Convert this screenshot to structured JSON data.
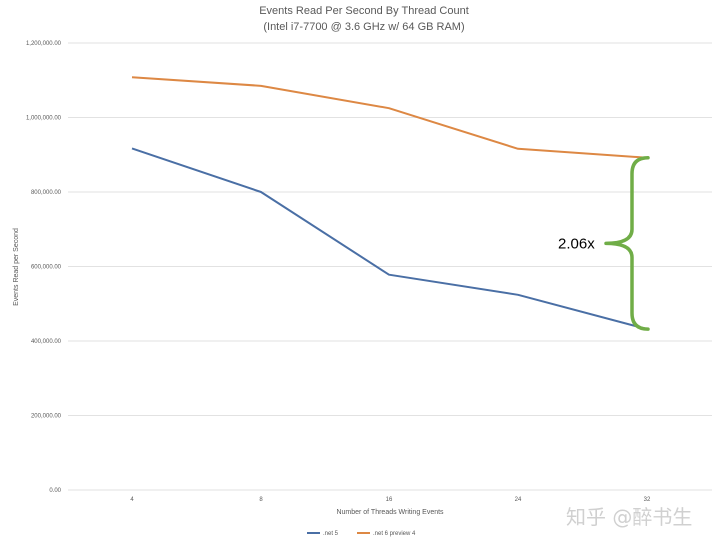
{
  "chart_data": {
    "type": "line",
    "title": "Events Read Per Second By Thread Count",
    "subtitle": "(Intel i7-7700 @ 3.6 GHz w/ 64 GB RAM)",
    "xlabel": "Number of Threads Writing Events",
    "ylabel": "Events Read per Second",
    "categories": [
      "4",
      "8",
      "16",
      "24",
      "32"
    ],
    "y_ticks": [
      "0.00",
      "200,000.00",
      "400,000.00",
      "600,000.00",
      "800,000.00",
      "1,000,000.00",
      "1,200,000.00"
    ],
    "ylim": [
      0,
      1200000
    ],
    "grid": true,
    "legend_position": "bottom",
    "series": [
      {
        "name": ".net 5",
        "color": "#4a6fa5",
        "values": [
          917000,
          800000,
          578000,
          524000,
          432000
        ]
      },
      {
        "name": ".net 6 preview 4",
        "color": "#dd8844",
        "values": [
          1108000,
          1085000,
          1025000,
          916000,
          892000
        ]
      }
    ],
    "annotations": [
      {
        "text": "2.06x",
        "brace_color": "#70ad47",
        "brace_from": 892000,
        "brace_to": 432000,
        "category": "32"
      }
    ]
  },
  "watermark": "知乎 @醉书生"
}
